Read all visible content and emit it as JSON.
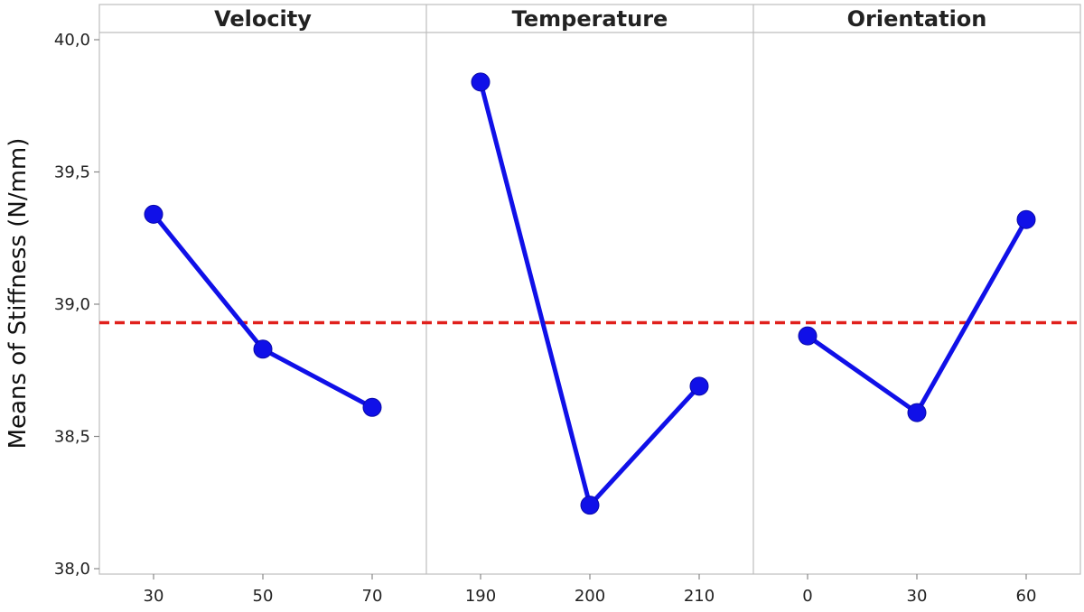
{
  "chart_data": {
    "type": "line",
    "title": "",
    "ylabel": "Means of Stiffness (N/mm)",
    "ylim": [
      38.0,
      40.0
    ],
    "yticks": [
      38.0,
      38.5,
      39.0,
      39.5,
      40.0
    ],
    "ytick_labels": [
      "38,0",
      "38,5",
      "39,0",
      "39,5",
      "40,0"
    ],
    "reference_line": {
      "value": 38.93,
      "style": "dashed",
      "color": "#e0201c"
    },
    "grid": false,
    "series_color": "#1010e8",
    "panels": [
      {
        "name": "Velocity",
        "categories": [
          "30",
          "50",
          "70"
        ],
        "values": [
          39.34,
          38.83,
          38.61
        ]
      },
      {
        "name": "Temperature",
        "categories": [
          "190",
          "200",
          "210"
        ],
        "values": [
          39.84,
          38.24,
          38.69
        ]
      },
      {
        "name": "Orientation",
        "categories": [
          "0",
          "30",
          "60"
        ],
        "values": [
          38.88,
          38.59,
          39.32
        ]
      }
    ]
  }
}
